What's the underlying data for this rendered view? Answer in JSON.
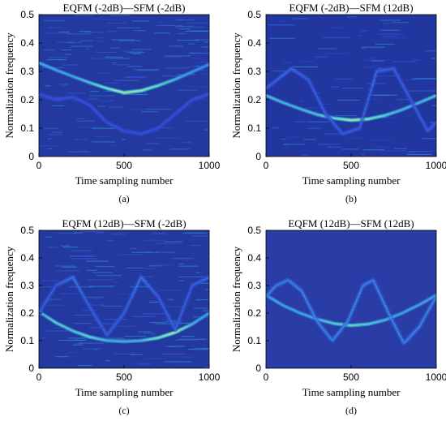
{
  "chart_data": [
    {
      "id": "a",
      "type": "heatmap",
      "title": "EQFM (-2dB)—SFM (-2dB)",
      "xlabel": "Time sampling number",
      "ylabel": "Normalization frequency",
      "caption": "(a)",
      "xlim": [
        0,
        1000
      ],
      "ylim": [
        0,
        0.5
      ],
      "xticks": [
        0,
        500,
        1000
      ],
      "yticks": [
        0,
        0.1,
        0.2,
        0.3,
        0.4,
        0.5
      ],
      "colormap": [
        "#1a2fa8",
        "#3a57e0",
        "#2bb6d6",
        "#8ee9b8",
        "#f4f08a"
      ],
      "background_color": "#23399f",
      "noise_level": 0.55,
      "series": [
        {
          "kind": "eqfm",
          "x": [
            0,
            100,
            200,
            300,
            400,
            500,
            600,
            700,
            800,
            900,
            1000
          ],
          "y": [
            0.33,
            0.305,
            0.282,
            0.26,
            0.24,
            0.225,
            0.232,
            0.25,
            0.272,
            0.298,
            0.325
          ],
          "brightness": [
            0.6,
            0.55,
            0.55,
            0.65,
            0.8,
            0.95,
            0.9,
            0.75,
            0.6,
            0.5,
            0.45
          ]
        },
        {
          "kind": "sfm",
          "x": [
            0,
            100,
            200,
            300,
            400,
            500,
            600,
            700,
            800,
            900,
            1000
          ],
          "y": [
            0.22,
            0.2,
            0.21,
            0.18,
            0.12,
            0.09,
            0.08,
            0.1,
            0.15,
            0.2,
            0.22
          ],
          "brightness": [
            0.25,
            0.25,
            0.25,
            0.25,
            0.25,
            0.25,
            0.25,
            0.25,
            0.25,
            0.25,
            0.25
          ]
        }
      ]
    },
    {
      "id": "b",
      "type": "heatmap",
      "title": "EQFM (-2dB)—SFM (12dB)",
      "xlabel": "Time sampling number",
      "ylabel": "",
      "caption": "(b)",
      "xlim": [
        0,
        1000
      ],
      "ylim": [
        0,
        0.5
      ],
      "xticks": [
        0,
        500,
        1000
      ],
      "yticks": [
        0,
        0.1,
        0.2,
        0.3,
        0.4,
        0.5
      ],
      "colormap": [
        "#1a2fa8",
        "#3a57e0",
        "#2bb6d6",
        "#8ee9b8",
        "#f4f08a"
      ],
      "background_color": "#2236a0",
      "noise_level": 0.35,
      "series": [
        {
          "kind": "eqfm",
          "x": [
            0,
            100,
            200,
            300,
            400,
            500,
            600,
            700,
            800,
            900,
            1000
          ],
          "y": [
            0.215,
            0.19,
            0.168,
            0.148,
            0.135,
            0.128,
            0.132,
            0.145,
            0.165,
            0.19,
            0.215
          ],
          "brightness": [
            0.65,
            0.6,
            0.6,
            0.65,
            0.75,
            0.95,
            0.85,
            0.7,
            0.6,
            0.6,
            0.65
          ]
        },
        {
          "kind": "sfm",
          "x": [
            0,
            150,
            250,
            350,
            450,
            550,
            650,
            750,
            850,
            950,
            1000
          ],
          "y": [
            0.24,
            0.31,
            0.27,
            0.15,
            0.08,
            0.1,
            0.3,
            0.31,
            0.2,
            0.09,
            0.12
          ],
          "brightness": [
            0.3,
            0.35,
            0.3,
            0.3,
            0.3,
            0.3,
            0.35,
            0.3,
            0.3,
            0.3,
            0.3
          ]
        }
      ]
    },
    {
      "id": "c",
      "type": "heatmap",
      "title": "EQFM (12dB)—SFM (-2dB)",
      "xlabel": "Time sampling number",
      "ylabel": "Normalization frequency",
      "caption": "(c)",
      "xlim": [
        0,
        1000
      ],
      "ylim": [
        0,
        0.5
      ],
      "xticks": [
        0,
        500,
        1000
      ],
      "yticks": [
        0,
        0.1,
        0.2,
        0.3,
        0.4,
        0.5
      ],
      "colormap": [
        "#1a2fa8",
        "#3a57e0",
        "#2bb6d6",
        "#8ee9b8",
        "#f4f08a"
      ],
      "background_color": "#24399f",
      "noise_level": 0.55,
      "series": [
        {
          "kind": "eqfm",
          "x": [
            0,
            100,
            200,
            300,
            400,
            500,
            600,
            700,
            800,
            900,
            1000
          ],
          "y": [
            0.205,
            0.165,
            0.135,
            0.113,
            0.1,
            0.097,
            0.1,
            0.11,
            0.13,
            0.16,
            0.2
          ],
          "brightness": [
            0.55,
            0.7,
            0.65,
            0.75,
            0.6,
            0.6,
            0.6,
            0.8,
            0.95,
            0.6,
            0.5
          ]
        },
        {
          "kind": "sfm",
          "x": [
            0,
            100,
            200,
            300,
            400,
            500,
            600,
            700,
            800,
            900,
            1000
          ],
          "y": [
            0.2,
            0.3,
            0.33,
            0.22,
            0.12,
            0.2,
            0.33,
            0.26,
            0.14,
            0.3,
            0.33
          ],
          "brightness": [
            0.3,
            0.3,
            0.4,
            0.3,
            0.3,
            0.3,
            0.4,
            0.3,
            0.3,
            0.3,
            0.35
          ]
        }
      ]
    },
    {
      "id": "d",
      "type": "heatmap",
      "title": "EQFM (12dB)—SFM (12dB)",
      "xlabel": "Time sampling number",
      "ylabel": "",
      "caption": "(d)",
      "xlim": [
        0,
        1000
      ],
      "ylim": [
        0,
        0.5
      ],
      "xticks": [
        0,
        500,
        1000
      ],
      "yticks": [
        0,
        0.1,
        0.2,
        0.3,
        0.4,
        0.5
      ],
      "colormap": [
        "#1a2fa8",
        "#3a57e0",
        "#2bb6d6",
        "#8ee9b8",
        "#f4f08a"
      ],
      "background_color": "#2a3ca6",
      "noise_level": 0.0,
      "series": [
        {
          "kind": "eqfm",
          "x": [
            0,
            100,
            200,
            300,
            400,
            500,
            600,
            700,
            800,
            900,
            1000
          ],
          "y": [
            0.265,
            0.228,
            0.2,
            0.178,
            0.162,
            0.155,
            0.16,
            0.175,
            0.2,
            0.23,
            0.265
          ],
          "brightness": [
            0.55,
            0.55,
            0.55,
            0.6,
            0.7,
            0.75,
            0.7,
            0.6,
            0.55,
            0.55,
            0.55
          ]
        },
        {
          "kind": "sfm",
          "x": [
            0,
            60,
            130,
            210,
            300,
            390,
            480,
            570,
            630,
            720,
            810,
            900,
            1000
          ],
          "y": [
            0.26,
            0.3,
            0.32,
            0.28,
            0.17,
            0.1,
            0.17,
            0.3,
            0.32,
            0.2,
            0.09,
            0.15,
            0.26
          ],
          "brightness": [
            0.45,
            0.45,
            0.45,
            0.45,
            0.45,
            0.45,
            0.45,
            0.45,
            0.45,
            0.45,
            0.45,
            0.45,
            0.45
          ]
        }
      ]
    }
  ]
}
